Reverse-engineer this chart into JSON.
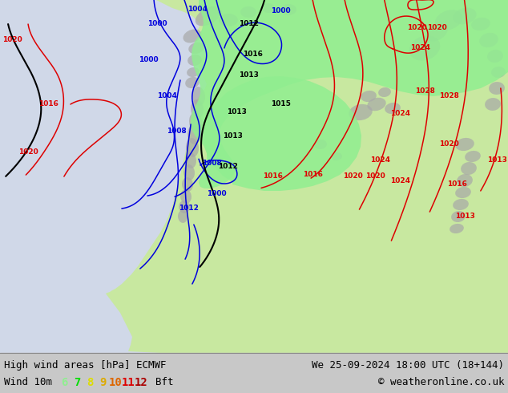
{
  "title_left": "High wind areas [hPa] ECMWF",
  "title_right": "We 25-09-2024 18:00 UTC (18+144)",
  "legend_label": "Wind 10m",
  "legend_values": [
    "6",
    "7",
    "8",
    "9",
    "10",
    "11",
    "12"
  ],
  "legend_colors": [
    "#90ee90",
    "#00dd00",
    "#dddd00",
    "#ddaa00",
    "#dd6600",
    "#dd0000",
    "#aa0000"
  ],
  "legend_suffix": "Bft",
  "copyright": "© weatheronline.co.uk",
  "bg_color": "#d8d8d8",
  "map_bg": "#d8d8d8",
  "ocean_color": "#d0d8e8",
  "land_color": "#c8e8a0",
  "land_dark": "#a8a8a8",
  "isobar_blue": "#0000dd",
  "isobar_red": "#dd0000",
  "isobar_black": "#000000",
  "wind_fill": "#90ee90",
  "bottom_bar_color": "#c8c8c8",
  "text_color": "#000000",
  "font_size_bottom": 9,
  "font_size_title": 9
}
